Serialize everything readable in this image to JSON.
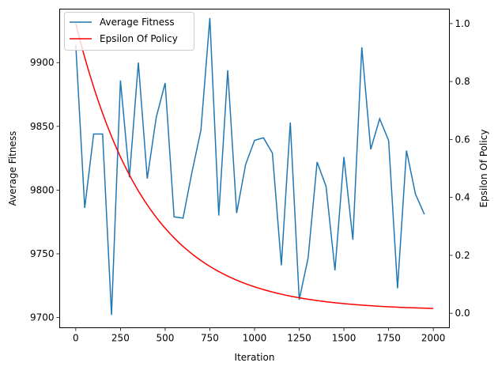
{
  "chart_data": {
    "type": "line",
    "xlabel": "Iteration",
    "ylabel_left": "Average Fitness",
    "ylabel_right": "Epsilon Of Policy",
    "xlim": [
      -90,
      2090
    ],
    "ylim_left": [
      9692,
      9942
    ],
    "ylim_right": [
      -0.05,
      1.05
    ],
    "x_ticks": [
      0,
      250,
      500,
      750,
      1000,
      1250,
      1500,
      1750,
      2000
    ],
    "y_left_ticks": [
      9700,
      9750,
      9800,
      9850,
      9900
    ],
    "y_right_ticks": [
      0.0,
      0.2,
      0.4,
      0.6,
      0.8,
      1.0
    ],
    "y_right_tick_labels": [
      "0.0",
      "0.2",
      "0.4",
      "0.6",
      "0.8",
      "1.0"
    ],
    "grid": false,
    "legend_position": "upper-left",
    "series": [
      {
        "name": "Average Fitness",
        "axis": "left",
        "color": "#1f77b4",
        "x": [
          0,
          50,
          100,
          150,
          200,
          250,
          300,
          350,
          400,
          450,
          500,
          550,
          600,
          650,
          700,
          750,
          800,
          850,
          900,
          950,
          1000,
          1050,
          1100,
          1150,
          1200,
          1250,
          1300,
          1350,
          1400,
          1450,
          1500,
          1550,
          1600,
          1650,
          1700,
          1750,
          1800,
          1850,
          1900,
          1950
        ],
        "y": [
          9914,
          9786,
          9844,
          9844,
          9702,
          9886,
          9810,
          9900,
          9809,
          9857,
          9884,
          9779,
          9778,
          9814,
          9847,
          9935,
          9780,
          9894,
          9782,
          9820,
          9839,
          9841,
          9829,
          9741,
          9853,
          9714,
          9747,
          9822,
          9803,
          9737,
          9826,
          9761,
          9912,
          9832,
          9856,
          9839,
          9723,
          9831,
          9797,
          9781
        ]
      },
      {
        "name": "Epsilon Of Policy",
        "axis": "right",
        "color": "#ff0000",
        "function": "0.01 + 0.99 * exp(-x / 400)",
        "x_range": [
          0,
          2000
        ]
      }
    ]
  }
}
